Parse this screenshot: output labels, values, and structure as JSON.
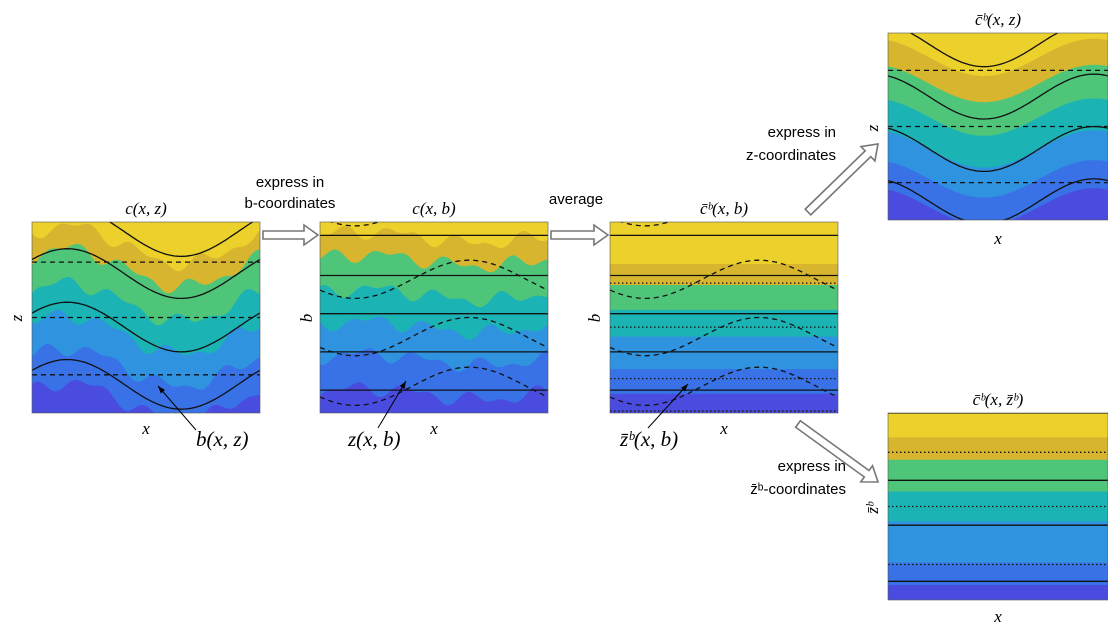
{
  "panels": [
    {
      "title": "c(x, z)",
      "xlabel": "x",
      "ylabel": "z"
    },
    {
      "title": "c(x, b)",
      "xlabel": "x",
      "ylabel": "b"
    },
    {
      "title": "c̄ᵇ(x, b)",
      "xlabel": "x",
      "ylabel": "b"
    },
    {
      "title": "c̄ᵇ(x, z)",
      "xlabel": "x",
      "ylabel": "z"
    },
    {
      "title": "c̄ᵇ(x, z̄ᵇ)",
      "xlabel": "x",
      "ylabel": "z̄ᵇ"
    }
  ],
  "arrows": [
    {
      "lines": [
        "express in",
        "b-coordinates"
      ]
    },
    {
      "lines": [
        "average"
      ]
    },
    {
      "lines": [
        "express in",
        "z-coordinates"
      ]
    },
    {
      "lines": [
        "express in",
        "z̄ᵇ-coordinates"
      ]
    }
  ],
  "annotations": [
    "b(x, z)",
    "z(x, b)",
    "z̄ᵇ(x, b)"
  ]
}
